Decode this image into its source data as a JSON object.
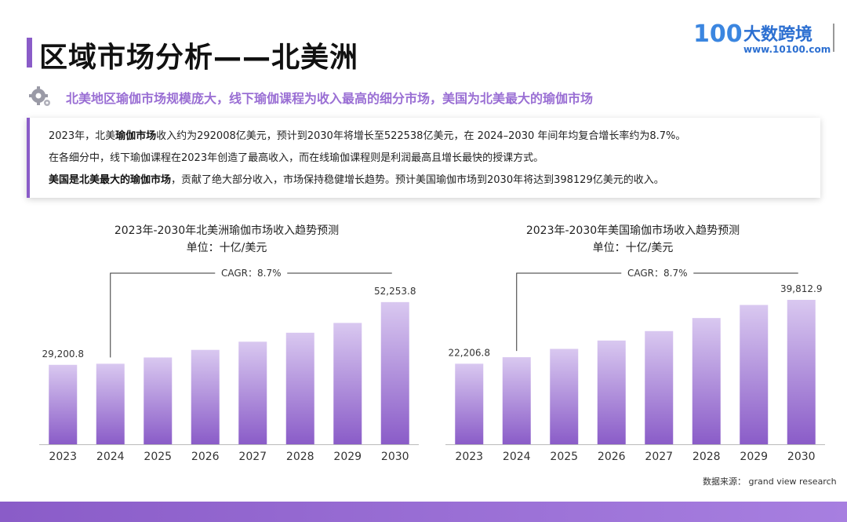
{
  "header": {
    "title": "区域市场分析——北美洲",
    "subtitle": "北美地区瑜伽市场规模庞大，线下瑜伽课程为收入最高的细分市场，美国为北美最大的瑜伽市场",
    "subtitle_icon": "gear-icon"
  },
  "logo": {
    "mark": "100",
    "name": "大数跨境",
    "url": "www.10100.com"
  },
  "summary": {
    "line1_a": "2023年，北美",
    "line1_b": "瑜伽市场",
    "line1_c": "收入约为292008亿美元，预计到2030年将增长至522538亿美元，在 2024–2030 年间年均复合增长率约为8.7%。",
    "line2": "在各细分中，线下瑜伽课程在2023年创造了最高收入，而在线瑜伽课程则是利润最高且增长最快的授课方式。",
    "line3_a": "美国是北美最大的瑜伽市场",
    "line3_b": "，贡献了绝大部分收入，市场保持稳健增长趋势。预计美国瑜伽市场到2030年将达到398129亿美元的收入。"
  },
  "chart_data": [
    {
      "type": "bar",
      "title": "2023年-2030年北美洲瑜伽市场收入趋势预测",
      "subtitle": "单位：十亿/美元",
      "categories": [
        "2023",
        "2024",
        "2025",
        "2026",
        "2027",
        "2028",
        "2029",
        "2030"
      ],
      "values": [
        29200.8,
        29600,
        31900,
        34700,
        37700,
        41000,
        44600,
        52253.8
      ],
      "labeled": {
        "first": "29,200.8",
        "last": "52,253.8"
      },
      "annotation": "CAGR：8.7%",
      "ylim": [
        0,
        60000
      ]
    },
    {
      "type": "bar",
      "title": "2023年-2030年美国瑜伽市场收入趋势预测",
      "subtitle": "单位：十亿/美元",
      "categories": [
        "2023",
        "2024",
        "2025",
        "2026",
        "2027",
        "2028",
        "2029",
        "2030"
      ],
      "values": [
        22206.8,
        24000,
        26300,
        28600,
        31200,
        34800,
        38400,
        39812.9
      ],
      "labeled": {
        "first": "22,206.8",
        "last": "39,812.9"
      },
      "annotation": "CAGR：8.7%",
      "ylim": [
        0,
        45000
      ]
    }
  ],
  "footer": {
    "source": "数据来源： grand view research"
  },
  "colors": {
    "accent": "#8a5cc8",
    "subtitle": "#9a6fd4",
    "bar_top": "#d9c8f0",
    "bar_bottom": "#8a5cc8"
  }
}
